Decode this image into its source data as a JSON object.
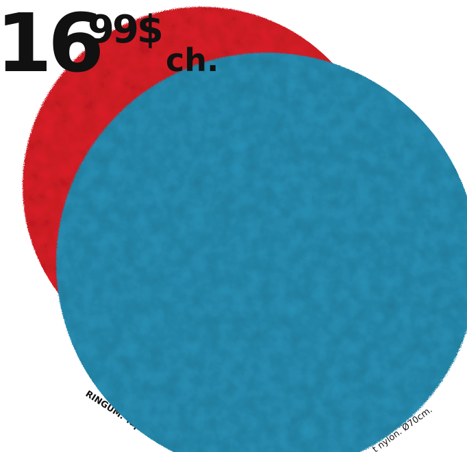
{
  "price": {
    "whole": "16",
    "cents": "99$",
    "unit": "ch."
  },
  "caption": {
    "start": "RINGUM. Tapi",
    "end": "t nylon. Ø70cm."
  }
}
